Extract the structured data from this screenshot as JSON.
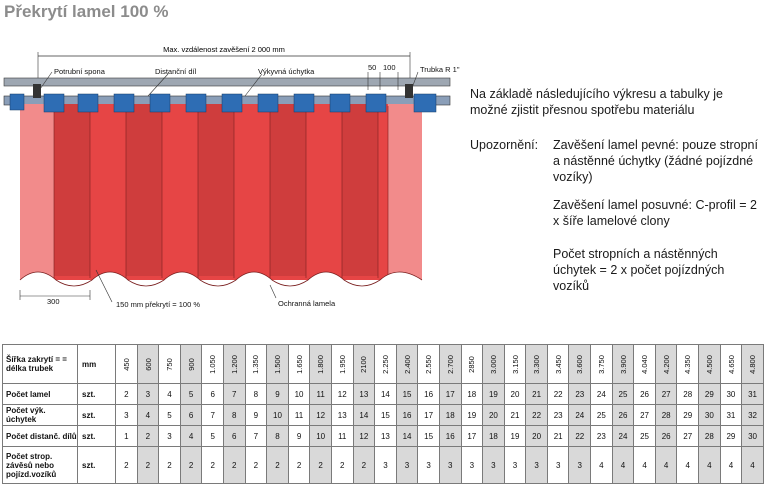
{
  "title": "Překrytí lamel 100 %",
  "drawing": {
    "max_span_label": "Max. vzdálenost zavěšení 2 000 mm",
    "labels": {
      "potrubni_spona": "Potrubní spona",
      "distancni_dil": "Distanční díl",
      "vykyvna_uchytka": "Výkyvná úchytka",
      "dim_50": "50",
      "dim_100": "100",
      "trubka": "Trubka R 1\"",
      "dim_300": "300",
      "overlap": "150 mm překrytí = 100 %",
      "ochranna_lamela": "Ochranná lamela"
    },
    "colors": {
      "lamella": "#e64545",
      "lamella_dark": "#c93a3a",
      "lamella_light": "#f28b8b",
      "clip": "#2e6db4",
      "pipe": "#8a9eb8"
    }
  },
  "intro": "Na základě následujícího výkresu a tabulky je možné zjistit přesnou spotřebu materiálu",
  "note_label": "Upozornění:",
  "notes": [
    "Zavěšení lamel pevné: pouze stropní a nástěnné úchytky (žádné pojízdné vozíky)",
    "Zavěšení lamel posuvné: C-profil = 2 x šíře lamelové clony",
    "Počet stropních a nástěnných úchytek = 2 x počet pojízdných vozíků"
  ],
  "table": {
    "header_label": "Šířka zakrytí = = délka trubek",
    "header_unit": "mm",
    "widths": [
      "450",
      "600",
      "750",
      "900",
      "1.050",
      "1.200",
      "1.350",
      "1.500",
      "1.650",
      "1.800",
      "1.950",
      "2100",
      "2.250",
      "2.400",
      "2.550",
      "2.700",
      "2850",
      "3.000",
      "3.150",
      "3.300",
      "3.450",
      "3.600",
      "3.750",
      "3.900",
      "4.040",
      "4.200",
      "4.350",
      "4.500",
      "4.650",
      "4.800"
    ],
    "rows": [
      {
        "label": "Počet lamel",
        "unit": "szt.",
        "values": [
          "2",
          "3",
          "4",
          "5",
          "6",
          "7",
          "8",
          "9",
          "10",
          "11",
          "12",
          "13",
          "14",
          "15",
          "16",
          "17",
          "18",
          "19",
          "20",
          "21",
          "22",
          "23",
          "24",
          "25",
          "26",
          "27",
          "28",
          "29",
          "30",
          "31"
        ]
      },
      {
        "label": "Počet výk. úchytek",
        "unit": "szt.",
        "values": [
          "3",
          "4",
          "5",
          "6",
          "7",
          "8",
          "9",
          "10",
          "11",
          "12",
          "13",
          "14",
          "15",
          "16",
          "17",
          "18",
          "19",
          "20",
          "21",
          "22",
          "23",
          "24",
          "25",
          "26",
          "27",
          "28",
          "29",
          "30",
          "31",
          "32"
        ]
      },
      {
        "label": "Počet distanč. dílů",
        "unit": "szt.",
        "values": [
          "1",
          "2",
          "3",
          "4",
          "5",
          "6",
          "7",
          "8",
          "9",
          "10",
          "11",
          "12",
          "13",
          "14",
          "15",
          "16",
          "17",
          "18",
          "19",
          "20",
          "21",
          "22",
          "23",
          "24",
          "25",
          "26",
          "27",
          "28",
          "29",
          "30"
        ]
      },
      {
        "label": "Počet strop. závěsů nebo pojízd.vozíků",
        "unit": "szt.",
        "values": [
          "2",
          "2",
          "2",
          "2",
          "2",
          "2",
          "2",
          "2",
          "2",
          "2",
          "2",
          "2",
          "3",
          "3",
          "3",
          "3",
          "3",
          "3",
          "3",
          "3",
          "3",
          "3",
          "4",
          "4",
          "4",
          "4",
          "4",
          "4",
          "4",
          "4"
        ]
      }
    ]
  }
}
